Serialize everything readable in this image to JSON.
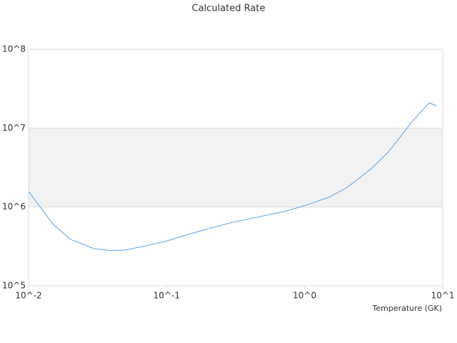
{
  "chart_data": {
    "type": "line",
    "title": "Calculated Rate",
    "x_label": "Temperature (GK)",
    "log_x": true,
    "log_y": true,
    "grid": true,
    "xlim": [
      0.01,
      10
    ],
    "ylim": [
      100000,
      100000000
    ],
    "xticks": [
      {
        "value": 0.01,
        "label": "10^-2"
      },
      {
        "value": 0.1,
        "label": "10^-1"
      },
      {
        "value": 1,
        "label": "10^0"
      },
      {
        "value": 10,
        "label": "10^1"
      }
    ],
    "yticks": [
      {
        "value": 100000,
        "label": "10^5"
      },
      {
        "value": 1000000,
        "label": "10^6"
      },
      {
        "value": 10000000,
        "label": "10^7"
      },
      {
        "value": 100000000,
        "label": "10^8"
      }
    ],
    "x": [
      0.01,
      0.015,
      0.02,
      0.03,
      0.04,
      0.05,
      0.07,
      0.1,
      0.15,
      0.2,
      0.3,
      0.5,
      0.7,
      1,
      1.5,
      2,
      3,
      4,
      5,
      6,
      7,
      8,
      9
    ],
    "series": [
      {
        "color": "#5aa0e6",
        "values": [
          1570000,
          610000,
          390000,
          295000,
          280000,
          285000,
          320000,
          370000,
          460000,
          530000,
          640000,
          770000,
          870000,
          1040000,
          1330000,
          1740000,
          3000000,
          4900000,
          8000000,
          12100000,
          16300000,
          20900000,
          19200000
        ]
      }
    ]
  }
}
